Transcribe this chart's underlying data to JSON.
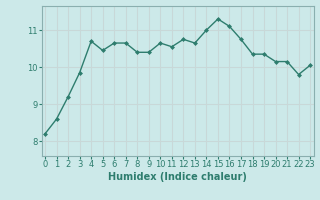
{
  "x": [
    0,
    1,
    2,
    3,
    4,
    5,
    6,
    7,
    8,
    9,
    10,
    11,
    12,
    13,
    14,
    15,
    16,
    17,
    18,
    19,
    20,
    21,
    22,
    23
  ],
  "y": [
    8.2,
    8.6,
    9.2,
    9.85,
    10.7,
    10.45,
    10.65,
    10.65,
    10.4,
    10.4,
    10.65,
    10.55,
    10.75,
    10.65,
    11.0,
    11.3,
    11.1,
    10.75,
    10.35,
    10.35,
    10.15,
    10.15,
    9.8,
    10.05
  ],
  "line_color": "#2e7d6e",
  "marker": "D",
  "marker_size": 2.0,
  "line_width": 1.0,
  "bg_color": "#cce9e9",
  "grid_color": "#c8d8d8",
  "xlabel": "Humidex (Indice chaleur)",
  "xlabel_fontsize": 7,
  "tick_fontsize": 6,
  "yticks": [
    8,
    9,
    10,
    11
  ],
  "xticks": [
    0,
    1,
    2,
    3,
    4,
    5,
    6,
    7,
    8,
    9,
    10,
    11,
    12,
    13,
    14,
    15,
    16,
    17,
    18,
    19,
    20,
    21,
    22,
    23
  ],
  "ylim": [
    7.6,
    11.65
  ],
  "xlim": [
    -0.3,
    23.3
  ],
  "spine_color": "#8aafaf"
}
